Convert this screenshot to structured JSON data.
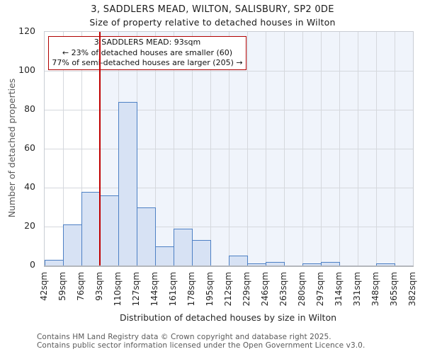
{
  "title": "3, SADDLERS MEAD, WILTON, SALISBURY, SP2 0DE",
  "subtitle": "Size of property relative to detached houses in Wilton",
  "annotation": {
    "line1": "3 SADDLERS MEAD: 93sqm",
    "line2": "← 23% of detached houses are smaller (60)",
    "line3": "77% of semi-detached houses are larger (205) →"
  },
  "chart_data": {
    "type": "bar",
    "title": "3, SADDLERS MEAD, WILTON, SALISBURY, SP2 0DE",
    "subtitle": "Size of property relative to detached houses in Wilton",
    "xlabel": "Distribution of detached houses by size in Wilton",
    "ylabel": "Number of detached properties",
    "categories": [
      "42sqm",
      "59sqm",
      "76sqm",
      "93sqm",
      "110sqm",
      "127sqm",
      "144sqm",
      "161sqm",
      "178sqm",
      "195sqm",
      "212sqm",
      "229sqm",
      "246sqm",
      "263sqm",
      "280sqm",
      "297sqm",
      "314sqm",
      "331sqm",
      "348sqm",
      "365sqm",
      "382sqm"
    ],
    "values": [
      3,
      21,
      38,
      36,
      84,
      30,
      10,
      19,
      13,
      0,
      5,
      1,
      2,
      0,
      1,
      2,
      0,
      0,
      1,
      0
    ],
    "ylim": [
      0,
      120
    ],
    "yticks": [
      0,
      20,
      40,
      60,
      80,
      100,
      120
    ],
    "grid": "on",
    "marker_label": "93sqm",
    "marker_tick_index": 3,
    "colors": {
      "bar_fill": "#d7e2f4",
      "bar_border": "#4d80c4",
      "marker_line": "#c00000",
      "annotation_border": "#b00000",
      "shade_region": "#f0f4fb",
      "gridline": "#d5d8dd"
    }
  },
  "footer": {
    "line1": "Contains HM Land Registry data © Crown copyright and database right 2025.",
    "line2": "Contains public sector information licensed under the Open Government Licence v3.0."
  }
}
